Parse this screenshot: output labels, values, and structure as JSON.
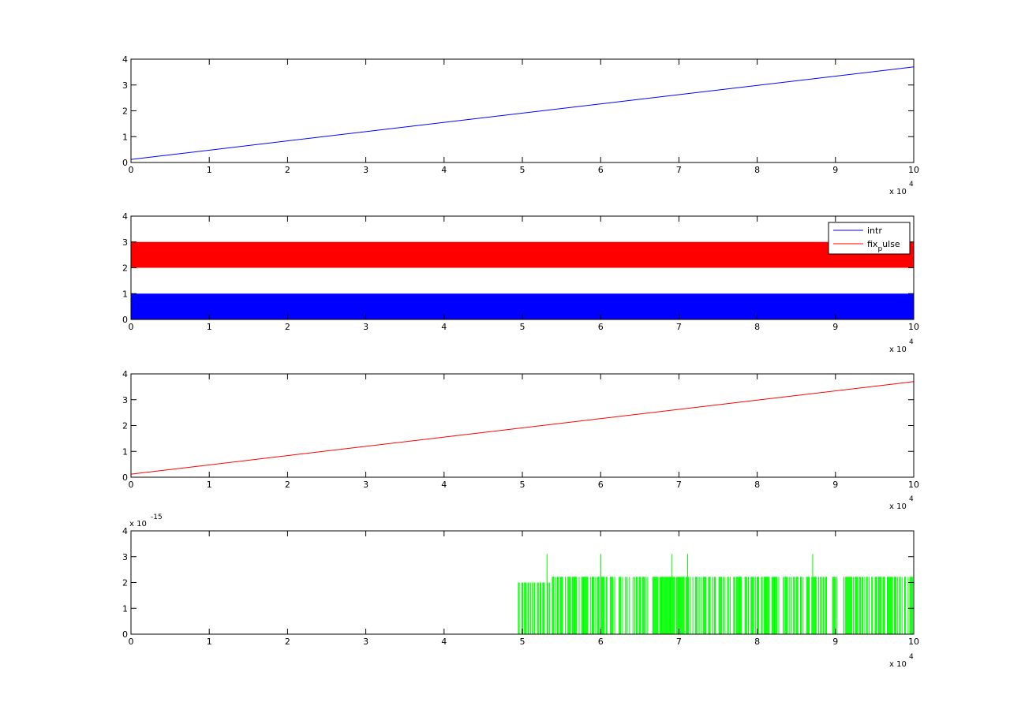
{
  "figure": {
    "background": "#ffffff"
  },
  "chart_data": [
    {
      "type": "line",
      "xlim": [
        0,
        100000
      ],
      "ylim": [
        0,
        4
      ],
      "x_ticks": [
        0,
        1,
        2,
        3,
        4,
        5,
        6,
        7,
        8,
        9,
        10
      ],
      "y_ticks": [
        0,
        1,
        2,
        3,
        4
      ],
      "x_multiplier": {
        "base": "x 10",
        "exp": "4"
      },
      "grid": false,
      "series": [
        {
          "color": "#0000ff",
          "x": [
            0,
            100000
          ],
          "y": [
            0.12,
            3.7
          ]
        }
      ]
    },
    {
      "type": "line",
      "xlim": [
        0,
        100000
      ],
      "ylim": [
        0,
        4
      ],
      "x_ticks": [
        0,
        1,
        2,
        3,
        4,
        5,
        6,
        7,
        8,
        9,
        10
      ],
      "y_ticks": [
        0,
        1,
        2,
        3,
        4
      ],
      "x_multiplier": {
        "base": "x 10",
        "exp": "4"
      },
      "grid": false,
      "legend": {
        "placement": "top-right"
      },
      "series": [
        {
          "name": "intr",
          "legend_main": "intr",
          "legend_sub": "",
          "legend_rest": "",
          "color": "#0000ff",
          "style": "square-wave",
          "low": 0,
          "high": 1,
          "x_range": [
            0,
            100000
          ]
        },
        {
          "name": "fix_pulse",
          "legend_main": "fix",
          "legend_sub": "p",
          "legend_rest": "ulse",
          "color": "#ff0000",
          "style": "square-wave",
          "low": 2,
          "high": 3,
          "x_range": [
            0,
            100000
          ]
        }
      ]
    },
    {
      "type": "line",
      "xlim": [
        0,
        100000
      ],
      "ylim": [
        0,
        4
      ],
      "x_ticks": [
        0,
        1,
        2,
        3,
        4,
        5,
        6,
        7,
        8,
        9,
        10
      ],
      "y_ticks": [
        0,
        1,
        2,
        3,
        4
      ],
      "x_multiplier": {
        "base": "x 10",
        "exp": "4"
      },
      "grid": false,
      "series": [
        {
          "color": "#ff0000",
          "x": [
            0,
            100000
          ],
          "y": [
            0.12,
            3.7
          ]
        }
      ]
    },
    {
      "type": "line",
      "xlim": [
        0,
        100000
      ],
      "ylim": [
        0,
        4
      ],
      "x_ticks": [
        0,
        1,
        2,
        3,
        4,
        5,
        6,
        7,
        8,
        9,
        10
      ],
      "y_ticks": [
        0,
        1,
        2,
        3,
        4
      ],
      "x_multiplier": {
        "base": "x 10",
        "exp": "4"
      },
      "y_multiplier": {
        "base": "x 10",
        "exp": "-15"
      },
      "grid": false,
      "series": [
        {
          "color": "#00ff00",
          "style": "noise-spikes",
          "x_start": 49500,
          "x_end": 100000,
          "levels": [
            2.0,
            2.22,
            3.11
          ]
        },
        {
          "color": "#ff0000",
          "x": [
            0,
            100000
          ],
          "y": [
            0,
            0
          ]
        }
      ]
    }
  ]
}
